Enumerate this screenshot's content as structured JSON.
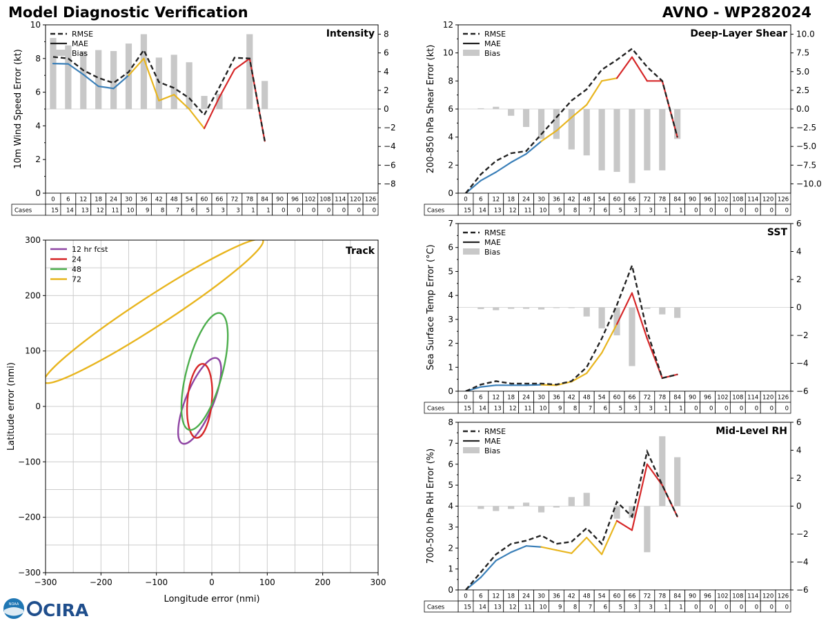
{
  "header": {
    "title_left": "Model Diagnostic Verification",
    "title_right": "AVNO - WP282024"
  },
  "logos": {
    "noaa": "NOAA",
    "cira": "CIRA"
  },
  "colors": {
    "rmse": "#222222",
    "mae_blue": "#3a7fb8",
    "mae_yellow": "#e8b51e",
    "mae_red": "#d62728",
    "bias": "#c8c8c8",
    "grid": "#cccccc"
  },
  "chart_data": [
    {
      "id": "intensity",
      "type": "line+bar",
      "title": "Intensity",
      "ylabel": "10m Wind Speed Error (kt)",
      "ylim": [
        0,
        10
      ],
      "yticks": [
        0,
        2,
        4,
        6,
        8,
        10
      ],
      "y2lim": [
        -9,
        9
      ],
      "y2ticks": [
        -8,
        -6,
        -4,
        -2,
        0,
        2,
        4,
        6,
        8
      ],
      "legend": [
        "RMSE",
        "MAE",
        "Bias"
      ],
      "leads": [
        0,
        6,
        12,
        18,
        24,
        30,
        36,
        42,
        48,
        54,
        60,
        66,
        72,
        78,
        84,
        90,
        96,
        102,
        108,
        114,
        120,
        126
      ],
      "cases_label": "Cases",
      "cases": [
        15,
        14,
        13,
        12,
        11,
        10,
        9,
        8,
        7,
        6,
        5,
        3,
        3,
        1,
        1,
        0,
        0,
        0,
        0,
        0,
        0,
        0
      ],
      "rmse": [
        8.1,
        8.0,
        7.3,
        6.85,
        6.55,
        7.2,
        8.5,
        6.6,
        6.25,
        5.65,
        4.65,
        6.3,
        8.05,
        8.0,
        3.1
      ],
      "mae": [
        7.7,
        7.68,
        7.05,
        6.35,
        6.22,
        7.0,
        8.0,
        5.5,
        5.85,
        5.0,
        3.85,
        5.7,
        7.35,
        8.0,
        3.1
      ],
      "bias": [
        7.6,
        6.8,
        6.2,
        6.3,
        6.2,
        7.0,
        8.0,
        5.5,
        5.8,
        5.0,
        1.4,
        1.6,
        0.0,
        8.0,
        3.0
      ]
    },
    {
      "id": "shear",
      "type": "line+bar",
      "title": "Deep-Layer Shear",
      "ylabel": "200-850 hPa Shear Error (kt)",
      "ylim": [
        0,
        12
      ],
      "yticks": [
        0,
        2,
        4,
        6,
        8,
        10,
        12
      ],
      "y2lim": [
        -11.25,
        11.25
      ],
      "y2ticks": [
        -10.0,
        -7.5,
        -5.0,
        -2.5,
        0.0,
        2.5,
        5.0,
        7.5,
        10.0
      ],
      "legend": [
        "RMSE",
        "MAE",
        "Bias"
      ],
      "leads": [
        0,
        6,
        12,
        18,
        24,
        30,
        36,
        42,
        48,
        54,
        60,
        66,
        72,
        78,
        84,
        90,
        96,
        102,
        108,
        114,
        120,
        126
      ],
      "cases_label": "Cases",
      "cases": [
        15,
        14,
        13,
        12,
        11,
        10,
        9,
        8,
        7,
        6,
        5,
        3,
        3,
        1,
        1,
        0,
        0,
        0,
        0,
        0,
        0,
        0
      ],
      "rmse": [
        0.0,
        1.35,
        2.3,
        2.85,
        3.0,
        4.2,
        5.4,
        6.6,
        7.4,
        8.8,
        9.5,
        10.3,
        9.0,
        8.0,
        4.0
      ],
      "mae": [
        0.0,
        0.9,
        1.5,
        2.2,
        2.8,
        3.7,
        4.45,
        5.4,
        6.3,
        8.0,
        8.2,
        9.7,
        8.0,
        8.0,
        4.0
      ],
      "bias": [
        0.0,
        0.1,
        0.3,
        -0.9,
        -2.4,
        -4.0,
        -4.0,
        -5.4,
        -6.2,
        -8.2,
        -8.4,
        -9.9,
        -8.2,
        -8.2,
        -4.0
      ]
    },
    {
      "id": "sst",
      "type": "line+bar",
      "title": "SST",
      "ylabel": "Sea Surface Temp Error (°C)",
      "ylim": [
        0,
        7
      ],
      "yticks": [
        0,
        1,
        2,
        3,
        4,
        5,
        6,
        7
      ],
      "y2lim": [
        -6,
        6
      ],
      "y2ticks": [
        -6,
        -4,
        -2,
        0,
        2,
        4,
        6
      ],
      "legend": [
        "RMSE",
        "MAE",
        "Bias"
      ],
      "leads": [
        0,
        6,
        12,
        18,
        24,
        30,
        36,
        42,
        48,
        54,
        60,
        66,
        72,
        78,
        84,
        90,
        96,
        102,
        108,
        114,
        120,
        126
      ],
      "cases_label": "Cases",
      "cases": [
        15,
        14,
        13,
        12,
        11,
        10,
        9,
        8,
        7,
        6,
        5,
        3,
        3,
        1,
        1,
        0,
        0,
        0,
        0,
        0,
        0,
        0
      ],
      "rmse": [
        0.0,
        0.28,
        0.42,
        0.32,
        0.32,
        0.32,
        0.28,
        0.42,
        1.0,
        2.2,
        3.6,
        5.25,
        2.5,
        0.55,
        0.7
      ],
      "mae": [
        0.0,
        0.18,
        0.25,
        0.25,
        0.25,
        0.27,
        0.25,
        0.4,
        0.75,
        1.6,
        2.8,
        4.1,
        2.2,
        0.55,
        0.7
      ],
      "bias": [
        0.0,
        -0.12,
        -0.2,
        -0.1,
        -0.1,
        -0.15,
        -0.05,
        -0.05,
        -0.65,
        -1.5,
        -2.0,
        -4.2,
        -0.1,
        -0.5,
        -0.75
      ]
    },
    {
      "id": "rh",
      "type": "line+bar",
      "title": "Mid-Level RH",
      "ylabel": "700-500 hPa RH Error (%)",
      "ylim": [
        0,
        8
      ],
      "yticks": [
        0,
        1,
        2,
        3,
        4,
        5,
        6,
        7,
        8
      ],
      "y2lim": [
        -6,
        6
      ],
      "y2ticks": [
        -6,
        -4,
        -2,
        0,
        2,
        4,
        6
      ],
      "legend": [
        "RMSE",
        "MAE",
        "Bias"
      ],
      "leads": [
        0,
        6,
        12,
        18,
        24,
        30,
        36,
        42,
        48,
        54,
        60,
        66,
        72,
        78,
        84,
        90,
        96,
        102,
        108,
        114,
        120,
        126
      ],
      "cases_label": "Cases",
      "cases": [
        15,
        14,
        13,
        12,
        11,
        10,
        9,
        8,
        7,
        6,
        5,
        3,
        3,
        1,
        1,
        0,
        0,
        0,
        0,
        0,
        0,
        0
      ],
      "rmse": [
        0.0,
        0.85,
        1.7,
        2.2,
        2.35,
        2.6,
        2.2,
        2.3,
        2.95,
        2.2,
        4.2,
        3.5,
        6.6,
        5.0,
        3.5
      ],
      "mae": [
        0.0,
        0.6,
        1.4,
        1.8,
        2.1,
        2.05,
        1.9,
        1.75,
        2.5,
        1.7,
        3.3,
        2.85,
        6.0,
        5.0,
        3.5
      ],
      "bias": [
        0.0,
        -0.2,
        -0.35,
        -0.2,
        0.25,
        -0.45,
        -0.1,
        0.65,
        0.95,
        0.0,
        -0.9,
        -0.85,
        -3.3,
        5.0,
        3.5
      ]
    },
    {
      "id": "track",
      "type": "ellipses",
      "title": "Track",
      "xlabel": "Longitude error (nmi)",
      "ylabel": "Latitude error (nmi)",
      "xlim": [
        -300,
        300
      ],
      "ylim": [
        -300,
        300
      ],
      "xticks": [
        -300,
        -200,
        -100,
        0,
        100,
        200,
        300
      ],
      "yticks": [
        -300,
        -200,
        -100,
        0,
        100,
        200,
        300
      ],
      "ellipses": [
        {
          "label": "12 hr fcst",
          "color": "#8e44a3",
          "cx": -22,
          "cy": 10,
          "a": 83,
          "b": 25,
          "angle": -68
        },
        {
          "label": "24",
          "color": "#d62728",
          "cx": -22,
          "cy": 10,
          "a": 67,
          "b": 22,
          "angle": -85
        },
        {
          "label": "48",
          "color": "#4cae4c",
          "cx": -13,
          "cy": 63,
          "a": 109,
          "b": 32,
          "angle": -75
        },
        {
          "label": "72",
          "color": "#e8b51e",
          "cx": -105,
          "cy": 172,
          "a": 235,
          "b": 27,
          "angle": -33
        }
      ]
    }
  ]
}
